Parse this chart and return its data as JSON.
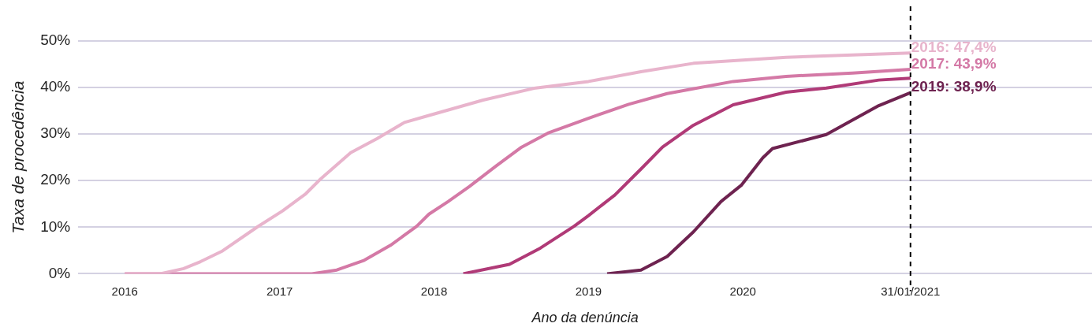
{
  "chart_data": {
    "type": "line",
    "xlabel": "Ano da denúncia",
    "ylabel": "Taxa de procedência",
    "xlim": [
      "2015-09-13",
      "2022-04-05"
    ],
    "xticks": [
      {
        "value": "2016",
        "label": "2016"
      },
      {
        "value": "2017",
        "label": "2017"
      },
      {
        "value": "2018",
        "label": "2018"
      },
      {
        "value": "2019",
        "label": "2019"
      },
      {
        "value": "2020",
        "label": "2020"
      },
      {
        "value": "2021-01-31",
        "label": "31/01/2021"
      }
    ],
    "ylim": [
      0,
      50
    ],
    "yticks": [
      {
        "value": 0,
        "label": "0%"
      },
      {
        "value": 10,
        "label": "10%"
      },
      {
        "value": 20,
        "label": "20%"
      },
      {
        "value": 30,
        "label": "30%"
      },
      {
        "value": 40,
        "label": "40%"
      },
      {
        "value": 50,
        "label": "50%"
      }
    ],
    "grid": "y",
    "legend": false,
    "marker": "none",
    "line_style": "solid",
    "series": [
      {
        "color": "#e8b4cc",
        "x": [
          "2016-01-01",
          "2016-03-25",
          "2016-05-19",
          "2016-06-28",
          "2016-08-19",
          "2016-11-10",
          "2017-01-08",
          "2017-03-04",
          "2017-04-06",
          "2017-06-18",
          "2017-08-19",
          "2017-10-23",
          "2017-12-20",
          "2018-04-27",
          "2018-08-29",
          "2019-01-01",
          "2019-05-05",
          "2019-09-06",
          "2020-04-12",
          "2020-09-16",
          "2021-01-31"
        ],
        "values": [
          0,
          0,
          1.1,
          2.6,
          4.9,
          10.1,
          13.5,
          17.2,
          20.2,
          26.0,
          29.0,
          32.5,
          34.0,
          37.3,
          39.9,
          41.3,
          43.4,
          45.2,
          46.5,
          47.0,
          47.4
        ]
      },
      {
        "color": "#d479a6",
        "x": [
          "2016-01-01",
          "2017-03-18",
          "2017-05-16",
          "2017-07-20",
          "2017-09-20",
          "2017-11-21",
          "2017-12-20",
          "2018-02-03",
          "2018-03-25",
          "2018-05-27",
          "2018-07-27",
          "2018-09-27",
          "2019-01-01",
          "2019-04-06",
          "2019-07-06",
          "2019-12-09",
          "2020-04-12",
          "2020-09-16",
          "2021-01-31"
        ],
        "values": [
          0,
          0,
          0.8,
          2.9,
          6.1,
          10.2,
          12.8,
          15.5,
          18.7,
          23.1,
          27.2,
          30.2,
          33.4,
          36.4,
          38.7,
          41.3,
          42.4,
          43.1,
          43.9
        ]
      },
      {
        "color": "#b03a77",
        "x": [
          "2018-03-11",
          "2018-06-28",
          "2018-09-09",
          "2018-11-28",
          "2019-01-01",
          "2019-03-04",
          "2019-05-05",
          "2019-06-25",
          "2019-09-06",
          "2019-12-09",
          "2020-04-12",
          "2020-07-16",
          "2020-11-17",
          "2021-01-31"
        ],
        "values": [
          0,
          2.0,
          5.5,
          10.2,
          12.5,
          16.9,
          22.5,
          27.2,
          31.9,
          36.3,
          39.0,
          39.9,
          41.6,
          42.0
        ]
      },
      {
        "color": "#6e2350",
        "x": [
          "2019-02-14",
          "2019-05-05",
          "2019-07-06",
          "2019-09-06",
          "2019-11-10",
          "2019-12-28",
          "2020-02-17",
          "2020-03-11",
          "2020-07-16",
          "2020-11-17",
          "2021-01-31"
        ],
        "values": [
          0,
          0.8,
          3.7,
          9.0,
          15.5,
          19.0,
          24.9,
          26.9,
          29.9,
          36.1,
          38.9
        ]
      }
    ],
    "ref_lines": [
      {
        "axis": "x",
        "value": "2021-01-31",
        "color": "#000000",
        "line_style": "dashed"
      }
    ],
    "annotations": [
      {
        "text": "2016: 47,4%",
        "x": "2021-01-31",
        "y": 47.4
      },
      {
        "text": "2017: 43,9%",
        "x": "2021-01-31",
        "y": 43.9
      },
      {
        "text": "2019: 38,9%",
        "x": "2021-01-31",
        "y": 38.9
      }
    ]
  }
}
